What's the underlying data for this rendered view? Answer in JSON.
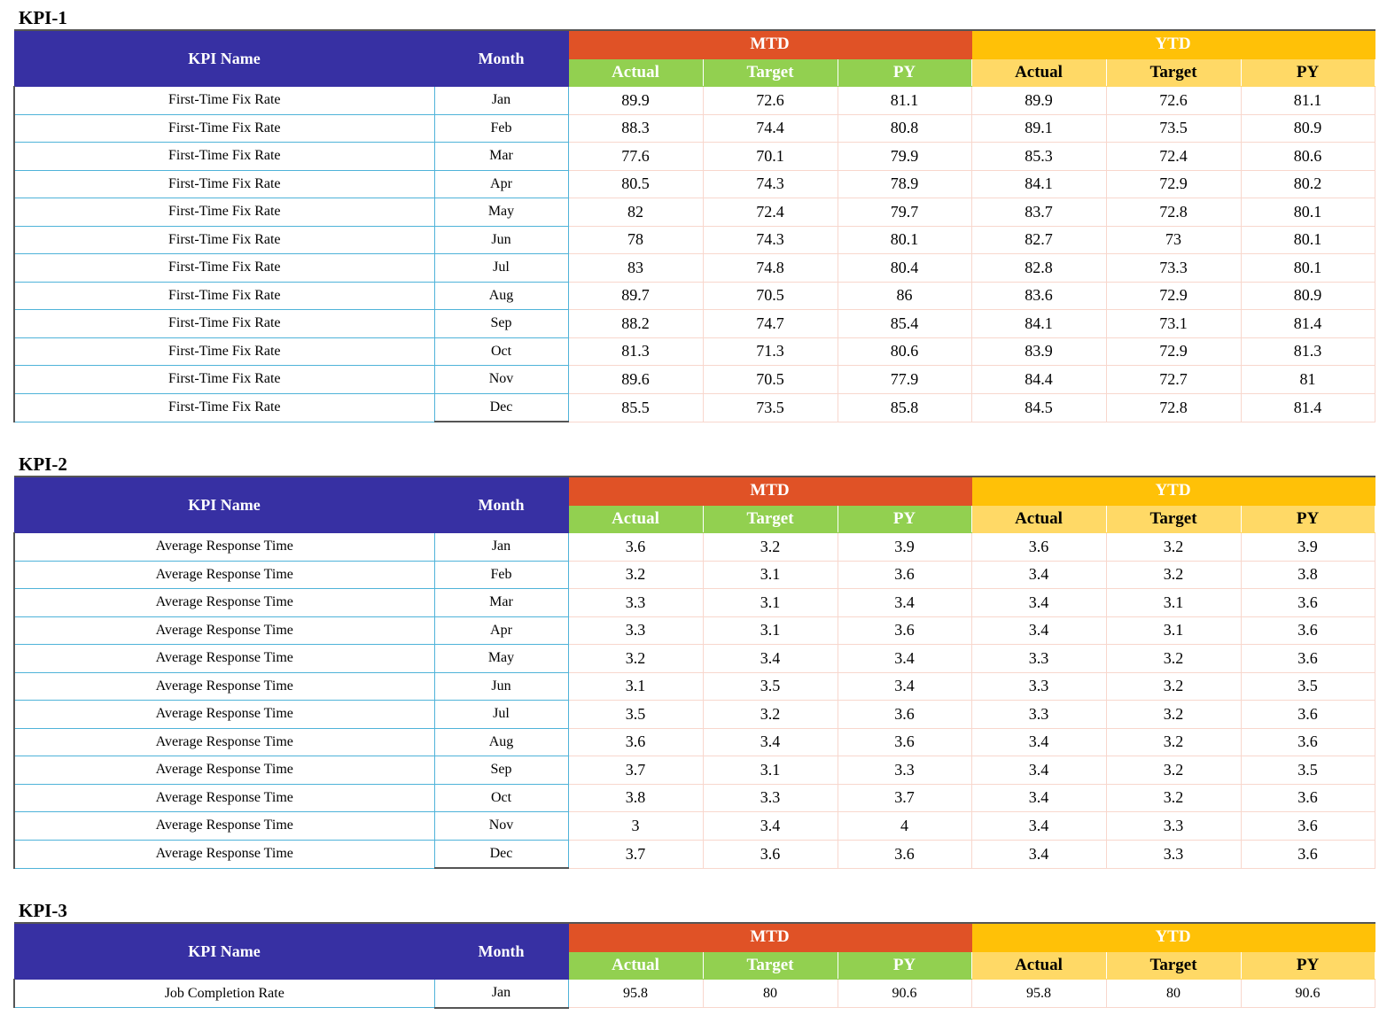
{
  "headers": {
    "kpi_name": "KPI Name",
    "month": "Month",
    "mtd": "MTD",
    "ytd": "YTD",
    "actual": "Actual",
    "target": "Target",
    "py": "PY"
  },
  "sections": [
    {
      "title": "KPI-1",
      "rows": [
        {
          "name": "First-Time Fix Rate",
          "month": "Jan",
          "mtd_actual": "89.9",
          "mtd_target": "72.6",
          "mtd_py": "81.1",
          "ytd_actual": "89.9",
          "ytd_target": "72.6",
          "ytd_py": "81.1"
        },
        {
          "name": "First-Time Fix Rate",
          "month": "Feb",
          "mtd_actual": "88.3",
          "mtd_target": "74.4",
          "mtd_py": "80.8",
          "ytd_actual": "89.1",
          "ytd_target": "73.5",
          "ytd_py": "80.9"
        },
        {
          "name": "First-Time Fix Rate",
          "month": "Mar",
          "mtd_actual": "77.6",
          "mtd_target": "70.1",
          "mtd_py": "79.9",
          "ytd_actual": "85.3",
          "ytd_target": "72.4",
          "ytd_py": "80.6"
        },
        {
          "name": "First-Time Fix Rate",
          "month": "Apr",
          "mtd_actual": "80.5",
          "mtd_target": "74.3",
          "mtd_py": "78.9",
          "ytd_actual": "84.1",
          "ytd_target": "72.9",
          "ytd_py": "80.2"
        },
        {
          "name": "First-Time Fix Rate",
          "month": "May",
          "mtd_actual": "82",
          "mtd_target": "72.4",
          "mtd_py": "79.7",
          "ytd_actual": "83.7",
          "ytd_target": "72.8",
          "ytd_py": "80.1"
        },
        {
          "name": "First-Time Fix Rate",
          "month": "Jun",
          "mtd_actual": "78",
          "mtd_target": "74.3",
          "mtd_py": "80.1",
          "ytd_actual": "82.7",
          "ytd_target": "73",
          "ytd_py": "80.1"
        },
        {
          "name": "First-Time Fix Rate",
          "month": "Jul",
          "mtd_actual": "83",
          "mtd_target": "74.8",
          "mtd_py": "80.4",
          "ytd_actual": "82.8",
          "ytd_target": "73.3",
          "ytd_py": "80.1"
        },
        {
          "name": "First-Time Fix Rate",
          "month": "Aug",
          "mtd_actual": "89.7",
          "mtd_target": "70.5",
          "mtd_py": "86",
          "ytd_actual": "83.6",
          "ytd_target": "72.9",
          "ytd_py": "80.9"
        },
        {
          "name": "First-Time Fix Rate",
          "month": "Sep",
          "mtd_actual": "88.2",
          "mtd_target": "74.7",
          "mtd_py": "85.4",
          "ytd_actual": "84.1",
          "ytd_target": "73.1",
          "ytd_py": "81.4"
        },
        {
          "name": "First-Time Fix Rate",
          "month": "Oct",
          "mtd_actual": "81.3",
          "mtd_target": "71.3",
          "mtd_py": "80.6",
          "ytd_actual": "83.9",
          "ytd_target": "72.9",
          "ytd_py": "81.3"
        },
        {
          "name": "First-Time Fix Rate",
          "month": "Nov",
          "mtd_actual": "89.6",
          "mtd_target": "70.5",
          "mtd_py": "77.9",
          "ytd_actual": "84.4",
          "ytd_target": "72.7",
          "ytd_py": "81"
        },
        {
          "name": "First-Time Fix Rate",
          "month": "Dec",
          "mtd_actual": "85.5",
          "mtd_target": "73.5",
          "mtd_py": "85.8",
          "ytd_actual": "84.5",
          "ytd_target": "72.8",
          "ytd_py": "81.4"
        }
      ]
    },
    {
      "title": "KPI-2",
      "rows": [
        {
          "name": "Average Response Time",
          "month": "Jan",
          "mtd_actual": "3.6",
          "mtd_target": "3.2",
          "mtd_py": "3.9",
          "ytd_actual": "3.6",
          "ytd_target": "3.2",
          "ytd_py": "3.9"
        },
        {
          "name": "Average Response Time",
          "month": "Feb",
          "mtd_actual": "3.2",
          "mtd_target": "3.1",
          "mtd_py": "3.6",
          "ytd_actual": "3.4",
          "ytd_target": "3.2",
          "ytd_py": "3.8"
        },
        {
          "name": "Average Response Time",
          "month": "Mar",
          "mtd_actual": "3.3",
          "mtd_target": "3.1",
          "mtd_py": "3.4",
          "ytd_actual": "3.4",
          "ytd_target": "3.1",
          "ytd_py": "3.6"
        },
        {
          "name": "Average Response Time",
          "month": "Apr",
          "mtd_actual": "3.3",
          "mtd_target": "3.1",
          "mtd_py": "3.6",
          "ytd_actual": "3.4",
          "ytd_target": "3.1",
          "ytd_py": "3.6"
        },
        {
          "name": "Average Response Time",
          "month": "May",
          "mtd_actual": "3.2",
          "mtd_target": "3.4",
          "mtd_py": "3.4",
          "ytd_actual": "3.3",
          "ytd_target": "3.2",
          "ytd_py": "3.6"
        },
        {
          "name": "Average Response Time",
          "month": "Jun",
          "mtd_actual": "3.1",
          "mtd_target": "3.5",
          "mtd_py": "3.4",
          "ytd_actual": "3.3",
          "ytd_target": "3.2",
          "ytd_py": "3.5"
        },
        {
          "name": "Average Response Time",
          "month": "Jul",
          "mtd_actual": "3.5",
          "mtd_target": "3.2",
          "mtd_py": "3.6",
          "ytd_actual": "3.3",
          "ytd_target": "3.2",
          "ytd_py": "3.6"
        },
        {
          "name": "Average Response Time",
          "month": "Aug",
          "mtd_actual": "3.6",
          "mtd_target": "3.4",
          "mtd_py": "3.6",
          "ytd_actual": "3.4",
          "ytd_target": "3.2",
          "ytd_py": "3.6"
        },
        {
          "name": "Average Response Time",
          "month": "Sep",
          "mtd_actual": "3.7",
          "mtd_target": "3.1",
          "mtd_py": "3.3",
          "ytd_actual": "3.4",
          "ytd_target": "3.2",
          "ytd_py": "3.5"
        },
        {
          "name": "Average Response Time",
          "month": "Oct",
          "mtd_actual": "3.8",
          "mtd_target": "3.3",
          "mtd_py": "3.7",
          "ytd_actual": "3.4",
          "ytd_target": "3.2",
          "ytd_py": "3.6"
        },
        {
          "name": "Average Response Time",
          "month": "Nov",
          "mtd_actual": "3",
          "mtd_target": "3.4",
          "mtd_py": "4",
          "ytd_actual": "3.4",
          "ytd_target": "3.3",
          "ytd_py": "3.6"
        },
        {
          "name": "Average Response Time",
          "month": "Dec",
          "mtd_actual": "3.7",
          "mtd_target": "3.6",
          "mtd_py": "3.6",
          "ytd_actual": "3.4",
          "ytd_target": "3.3",
          "ytd_py": "3.6"
        }
      ]
    },
    {
      "title": "KPI-3",
      "rows": [
        {
          "name": "Job Completion Rate",
          "month": "Jan",
          "mtd_actual": "95.8",
          "mtd_target": "80",
          "mtd_py": "90.6",
          "ytd_actual": "95.8",
          "ytd_target": "80",
          "ytd_py": "90.6"
        }
      ]
    }
  ]
}
